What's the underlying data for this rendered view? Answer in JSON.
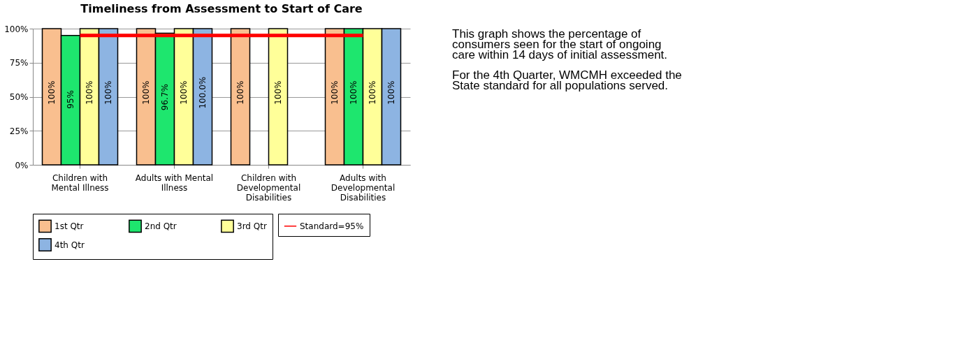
{
  "chart_data": {
    "type": "bar",
    "title": "Timeliness from Assessment to Start of Care",
    "categories": [
      "Children with Mental Illness",
      "Adults with Mental Illness",
      "Children with Developmental Disabilities",
      "Adults with Developmental Disabilities"
    ],
    "series": [
      {
        "name": "1st Qtr",
        "color": "#f9bf8f",
        "values": [
          100,
          100,
          100,
          100
        ],
        "value_labels": [
          "100%",
          "100%",
          "100%",
          "100%"
        ]
      },
      {
        "name": "2nd Qtr",
        "color": "#1ee66e",
        "values": [
          95,
          96.7,
          null,
          100
        ],
        "value_labels": [
          "95%",
          "96.7%",
          null,
          "100%"
        ]
      },
      {
        "name": "3rd Qtr",
        "color": "#ffff99",
        "values": [
          100,
          100,
          100,
          100
        ],
        "value_labels": [
          "100%",
          "100%",
          "100%",
          "100%"
        ]
      },
      {
        "name": "4th Qtr",
        "color": "#8db4e2",
        "values": [
          100,
          100,
          null,
          100
        ],
        "value_labels": [
          "100%",
          "100.0%",
          null,
          "100%"
        ]
      },
      {
        "name": "Standard=95%",
        "type": "line",
        "color": "#ff0000",
        "values": [
          95,
          95,
          95,
          95
        ]
      }
    ],
    "ylim": [
      0,
      100
    ],
    "yticks": [
      {
        "value": 0,
        "label": "0%"
      },
      {
        "value": 25,
        "label": "25%"
      },
      {
        "value": 50,
        "label": "50%"
      },
      {
        "value": 75,
        "label": "75%"
      },
      {
        "value": 100,
        "label": "100%"
      }
    ],
    "grid": "y",
    "legend": "bottom",
    "annotations": [
      "This graph shows the percentage of consumers seen for the start of ongoing care within 14 days of initial assessment.",
      "For the 4th Quarter, WMCMH exceeded the State standard for all populations served."
    ]
  }
}
